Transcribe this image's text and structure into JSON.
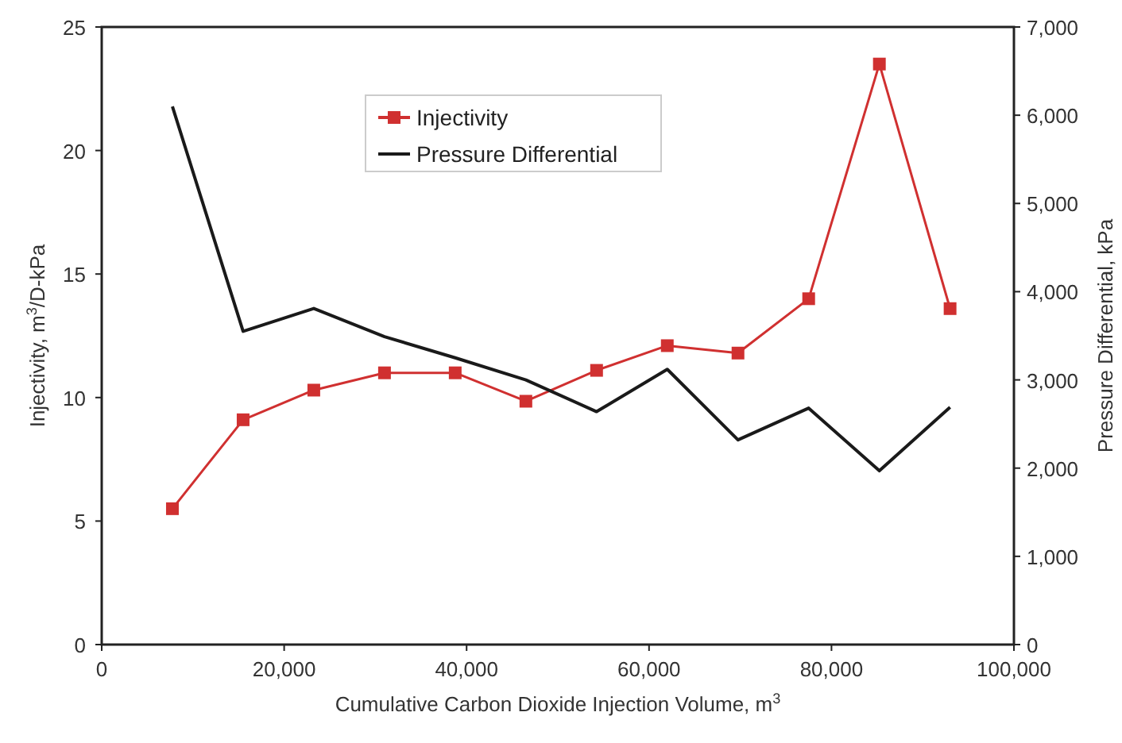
{
  "chart_data": {
    "type": "line",
    "xlabel": "Cumulative Carbon Dioxide Injection Volume, m$^{3}$",
    "ylabel": "Injectivity, m$^{3}$/D-kPa",
    "y2label": "Pressure Differential, kPa",
    "x": [
      7750,
      15500,
      23250,
      31000,
      38750,
      46500,
      54250,
      62000,
      69750,
      77500,
      85250,
      93000
    ],
    "series": [
      {
        "name": "Injectivity",
        "color": "#d03030",
        "marker": "square",
        "values": [
          5.5,
          9.1,
          10.3,
          11.0,
          11.0,
          9.85,
          11.1,
          12.1,
          11.8,
          14.0,
          23.5,
          13.6
        ]
      },
      {
        "name": "Pressure Differential",
        "color": "#1a1a1a",
        "marker": "none",
        "axis": "y2",
        "values": [
          6100,
          3550,
          3810,
          3490,
          3250,
          3000,
          2640,
          3120,
          2320,
          2680,
          1970,
          2690
        ]
      }
    ],
    "xlim": [
      0,
      100000
    ],
    "xticks": [
      0,
      {
        "value": 20000,
        "label": "20,000"
      },
      {
        "value": 40000,
        "label": "40,000"
      },
      {
        "value": 60000,
        "label": "60,000"
      },
      {
        "value": 80000,
        "label": "80,000"
      },
      {
        "value": 100000,
        "label": "100,000"
      }
    ],
    "ylim": [
      0,
      25
    ],
    "yticks": [
      0,
      5,
      10,
      15,
      20,
      25
    ],
    "y2lim": [
      0,
      7000
    ],
    "y2ticks": [
      0,
      {
        "value": 1000,
        "label": "1,000"
      },
      {
        "value": 2000,
        "label": "2,000"
      },
      {
        "value": 3000,
        "label": "3,000"
      },
      {
        "value": 4000,
        "label": "4,000"
      },
      {
        "value": 5000,
        "label": "5,000"
      },
      {
        "value": 6000,
        "label": "6,000"
      },
      {
        "value": 7000,
        "label": "7,000"
      }
    ],
    "grid": false,
    "legend": "top"
  }
}
